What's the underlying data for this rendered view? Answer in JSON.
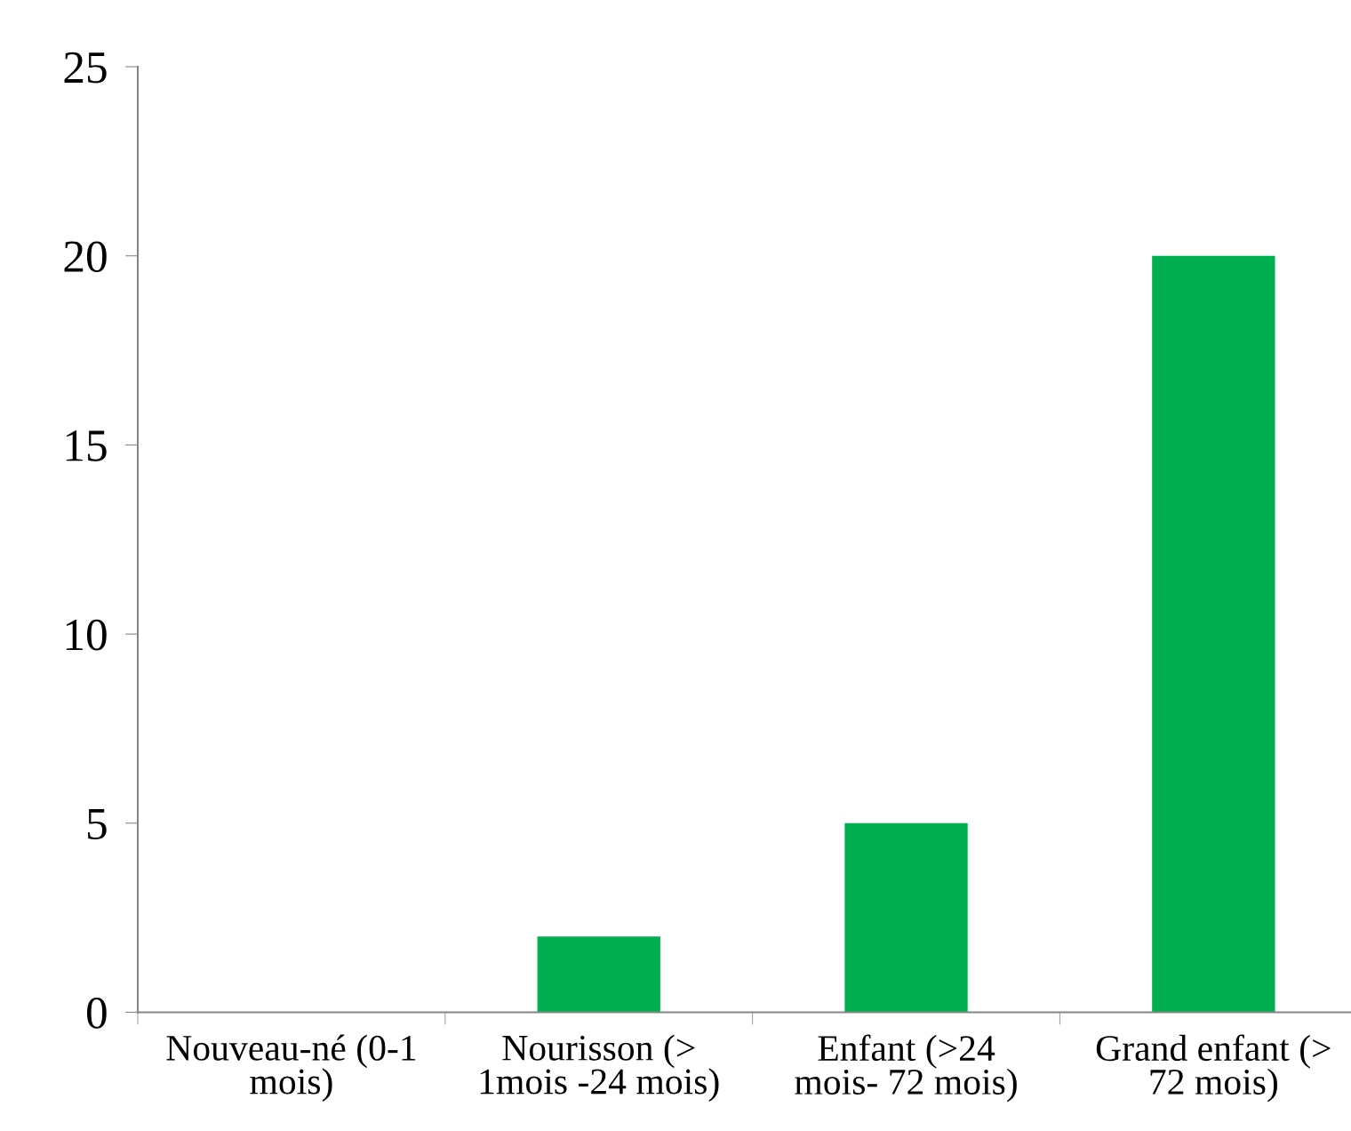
{
  "chart_data": {
    "type": "bar",
    "categories": [
      "Nouveau-né (0-1\nmois)",
      "Nourisson (>\n1mois -24 mois)",
      "Enfant (>24\nmois- 72 mois)",
      "Grand enfant (>\n72 mois)"
    ],
    "values": [
      0,
      2,
      5,
      20
    ],
    "color": "#00b050",
    "ylim": [
      0,
      25
    ],
    "yticks": [
      0,
      5,
      10,
      15,
      20,
      25
    ],
    "grid": false,
    "legend": false
  }
}
